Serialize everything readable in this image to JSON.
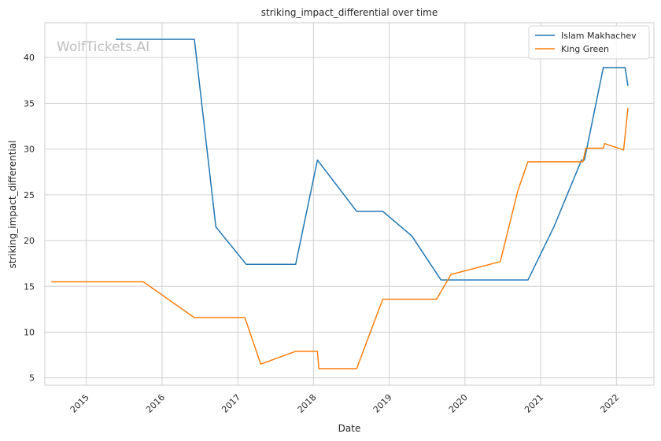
{
  "watermark": "WolfTickets.AI",
  "chart_data": {
    "type": "line",
    "title": "striking_impact_differential over time",
    "xlabel": "Date",
    "ylabel": "striking_impact_differential",
    "x_ticks": [
      "2015",
      "2016",
      "2017",
      "2018",
      "2019",
      "2020",
      "2021",
      "2022"
    ],
    "y_ticks": [
      5,
      10,
      15,
      20,
      25,
      30,
      35,
      40
    ],
    "xlim": [
      "2014-06-15",
      "2022-07-01"
    ],
    "ylim": [
      4.2,
      43.8
    ],
    "grid": true,
    "legend_position": "top-right",
    "series": [
      {
        "name": "Islam Makhachev",
        "color": "#1f77b4",
        "points": [
          [
            "2015-05-23",
            42.0
          ],
          [
            "2016-06-05",
            42.0
          ],
          [
            "2016-09-17",
            21.5
          ],
          [
            "2017-02-11",
            17.4
          ],
          [
            "2017-10-07",
            17.4
          ],
          [
            "2018-01-20",
            28.8
          ],
          [
            "2018-07-28",
            23.2
          ],
          [
            "2018-12-01",
            23.2
          ],
          [
            "2019-04-20",
            20.5
          ],
          [
            "2019-09-07",
            15.7
          ],
          [
            "2020-11-01",
            15.7
          ],
          [
            "2021-03-06",
            21.5
          ],
          [
            "2021-07-17",
            28.8
          ],
          [
            "2021-07-31",
            28.8
          ],
          [
            "2021-10-30",
            38.9
          ],
          [
            "2022-02-12",
            38.9
          ],
          [
            "2022-02-26",
            36.9
          ]
        ]
      },
      {
        "name": "King Green",
        "color": "#ff7f0e",
        "points": [
          [
            "2014-07-16",
            15.5
          ],
          [
            "2015-10-03",
            15.5
          ],
          [
            "2016-06-04",
            11.6
          ],
          [
            "2017-02-04",
            11.6
          ],
          [
            "2017-04-22",
            6.5
          ],
          [
            "2017-10-07",
            7.9
          ],
          [
            "2018-01-20",
            7.9
          ],
          [
            "2018-01-27",
            6.0
          ],
          [
            "2018-07-28",
            6.0
          ],
          [
            "2018-12-01",
            13.6
          ],
          [
            "2019-08-17",
            13.6
          ],
          [
            "2019-10-26",
            16.3
          ],
          [
            "2020-06-20",
            17.7
          ],
          [
            "2020-09-12",
            25.4
          ],
          [
            "2020-10-31",
            28.6
          ],
          [
            "2021-07-24",
            28.6
          ],
          [
            "2021-08-07",
            30.1
          ],
          [
            "2021-10-30",
            30.1
          ],
          [
            "2021-11-06",
            30.6
          ],
          [
            "2022-02-05",
            29.9
          ],
          [
            "2022-02-26",
            34.5
          ]
        ]
      }
    ]
  }
}
